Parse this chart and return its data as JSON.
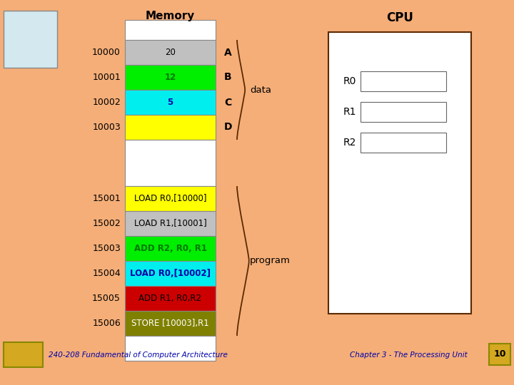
{
  "bg_color": "#F5AE78",
  "title_memory": "Memory",
  "title_cpu": "CPU",
  "memory_rows": [
    {
      "addr": "",
      "label": "",
      "color": "#FFFFFF",
      "text_color": "#000000",
      "bold": false
    },
    {
      "addr": "10000",
      "label": "20",
      "color": "#C0C0C0",
      "text_color": "#000000",
      "bold": false
    },
    {
      "addr": "10001",
      "label": "12",
      "color": "#00EE00",
      "text_color": "#007700",
      "bold": true
    },
    {
      "addr": "10002",
      "label": "5",
      "color": "#00EEEE",
      "text_color": "#0000AA",
      "bold": true
    },
    {
      "addr": "10003",
      "label": "",
      "color": "#FFFF00",
      "text_color": "#000000",
      "bold": false
    },
    {
      "addr": "",
      "label": "",
      "color": "#FFFFFF",
      "text_color": "#000000",
      "bold": false
    },
    {
      "addr": "15001",
      "label": "LOAD R0,[10000]",
      "color": "#FFFF00",
      "text_color": "#000000",
      "bold": false
    },
    {
      "addr": "15002",
      "label": "LOAD R1,[10001]",
      "color": "#C0C0C0",
      "text_color": "#000000",
      "bold": false
    },
    {
      "addr": "15003",
      "label": "ADD R2, R0, R1",
      "color": "#00EE00",
      "text_color": "#007700",
      "bold": true
    },
    {
      "addr": "15004",
      "label": "LOAD R0,[10002]",
      "color": "#00EEEE",
      "text_color": "#0000AA",
      "bold": true
    },
    {
      "addr": "15005",
      "label": "ADD R1, R0,R2",
      "color": "#CC0000",
      "text_color": "#000000",
      "bold": false
    },
    {
      "addr": "15006",
      "label": "STORE [10003],R1",
      "color": "#808000",
      "text_color": "#FFFFFF",
      "bold": false
    },
    {
      "addr": "",
      "label": "",
      "color": "#FFFFFF",
      "text_color": "#000000",
      "bold": false
    }
  ],
  "side_labels": [
    {
      "label": "A",
      "row": 1
    },
    {
      "label": "B",
      "row": 2
    },
    {
      "label": "C",
      "row": 3
    },
    {
      "label": "D",
      "row": 4
    }
  ],
  "footer_left": "240-208 Fundamental of Computer Architecture",
  "footer_right": "Chapter 3 - The Processing Unit",
  "page_num": "10"
}
